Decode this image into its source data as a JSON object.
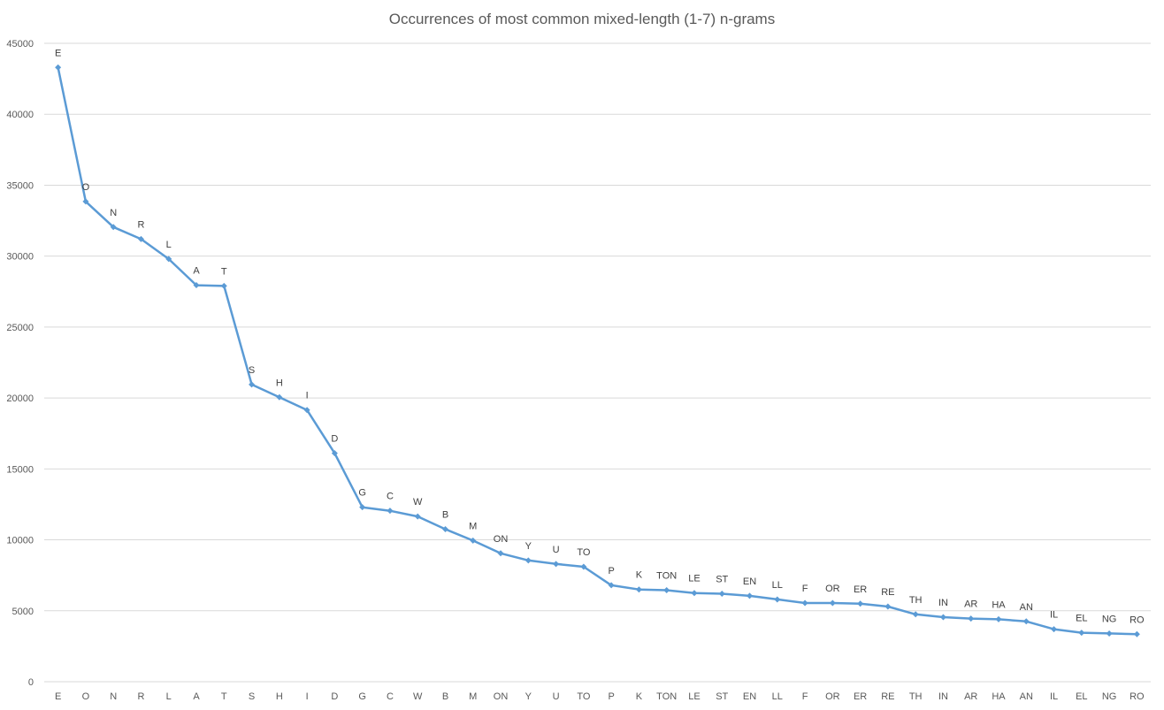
{
  "chart_data": {
    "type": "line",
    "title": "Occurrences of most common mixed-length (1-7) n-grams",
    "xlabel": "",
    "ylabel": "",
    "ylim": [
      0,
      45000
    ],
    "yticks": [
      0,
      5000,
      10000,
      15000,
      20000,
      25000,
      30000,
      35000,
      40000,
      45000
    ],
    "grid": true,
    "legend": "none",
    "categories": [
      "E",
      "O",
      "N",
      "R",
      "L",
      "A",
      "T",
      "S",
      "H",
      "I",
      "D",
      "G",
      "C",
      "W",
      "B",
      "M",
      "ON",
      "Y",
      "U",
      "TO",
      "P",
      "K",
      "TON",
      "LE",
      "ST",
      "EN",
      "LL",
      "F",
      "OR",
      "ER",
      "RE",
      "TH",
      "IN",
      "AR",
      "HA",
      "AN",
      "IL",
      "EL",
      "NG",
      "RO"
    ],
    "series": [
      {
        "values": [
          43300,
          33850,
          32050,
          31200,
          29800,
          27950,
          27900,
          20950,
          20050,
          19150,
          16100,
          12300,
          12050,
          11650,
          10750,
          9950,
          9050,
          8550,
          8300,
          8100,
          6800,
          6500,
          6450,
          6250,
          6200,
          6050,
          5800,
          5550,
          5550,
          5500,
          5300,
          4750,
          4550,
          4450,
          4400,
          4250,
          3700,
          3450,
          3400,
          3350
        ],
        "point_labels": [
          "E",
          "O",
          "N",
          "R",
          "L",
          "A",
          "T",
          "S",
          "H",
          "I",
          "D",
          "G",
          "C",
          "W",
          "B",
          "M",
          "ON",
          "Y",
          "U",
          "TO",
          "P",
          "K",
          "TON",
          "LE",
          "ST",
          "EN",
          "LL",
          "F",
          "OR",
          "ER",
          "RE",
          "TH",
          "IN",
          "AR",
          "HA",
          "AN",
          "IL",
          "EL",
          "NG",
          "RO"
        ]
      }
    ],
    "colors": {
      "line": "#5B9BD5",
      "grid": "#D9D9D9",
      "text": "#595959"
    }
  }
}
